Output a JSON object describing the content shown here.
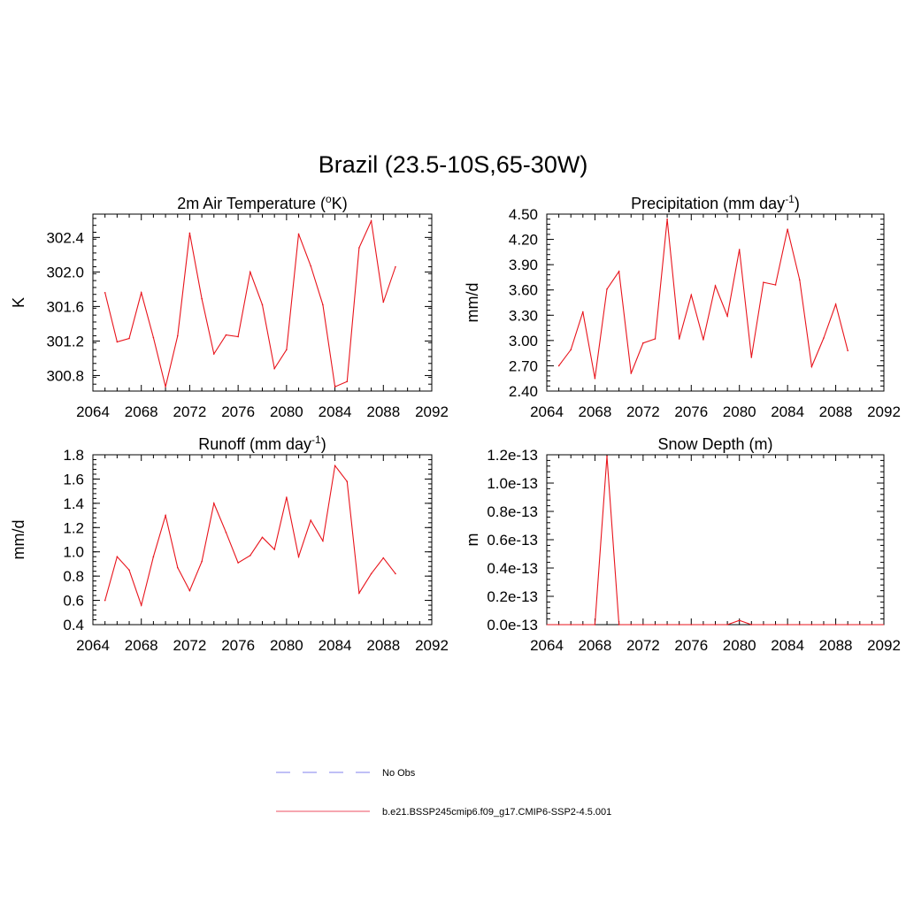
{
  "figure": {
    "title": "Brazil (23.5-10S,65-30W)"
  },
  "legend": {
    "entries": [
      {
        "label": "No Obs",
        "color": "#9a9af0",
        "dash": true
      },
      {
        "label": "b.e21.BSSP245cmip6.f09_g17.CMIP6-SSP2-4.5.001",
        "color": "#f07080",
        "dash": false
      }
    ]
  },
  "colors": {
    "series": "#e8141c",
    "axis": "#000000"
  },
  "chart_data": [
    {
      "type": "line",
      "title_main": "2m Air Temperature (",
      "title_sup_o": "o",
      "title_end": "K)",
      "xlabel": "",
      "ylabel": "K",
      "xlim": [
        2064,
        2092
      ],
      "ylim": [
        300.62,
        302.67
      ],
      "xticks": [
        "2064",
        "2068",
        "2072",
        "2076",
        "2080",
        "2084",
        "2088",
        "2092"
      ],
      "yticks": [
        "300.8",
        "301.2",
        "301.6",
        "302.0",
        "302.4"
      ],
      "yminor_step": 0.08,
      "x": [
        2065,
        2066,
        2067,
        2068,
        2069,
        2070,
        2071,
        2072,
        2073,
        2074,
        2075,
        2076,
        2077,
        2078,
        2079,
        2080,
        2081,
        2082,
        2083,
        2084,
        2085,
        2086,
        2087,
        2088,
        2089
      ],
      "values": [
        301.76,
        301.19,
        301.23,
        301.76,
        301.24,
        300.67,
        301.26,
        302.45,
        301.69,
        301.05,
        301.27,
        301.25,
        302.0,
        301.62,
        300.88,
        301.1,
        302.44,
        302.07,
        301.62,
        300.67,
        300.73,
        302.28,
        302.59,
        301.65,
        302.06
      ]
    },
    {
      "type": "line",
      "title_main": "Precipitation (mm day",
      "title_sup": "-1",
      "title_end": ")",
      "xlabel": "",
      "ylabel": "mm/d",
      "xlim": [
        2064,
        2092
      ],
      "ylim": [
        2.4,
        4.5
      ],
      "xticks": [
        "2064",
        "2068",
        "2072",
        "2076",
        "2080",
        "2084",
        "2088",
        "2092"
      ],
      "yticks": [
        "2.40",
        "2.70",
        "3.00",
        "3.30",
        "3.60",
        "3.90",
        "4.20",
        "4.50"
      ],
      "yminor_step": 0.06,
      "x": [
        2065,
        2066,
        2067,
        2068,
        2069,
        2070,
        2071,
        2072,
        2073,
        2074,
        2075,
        2076,
        2077,
        2078,
        2079,
        2080,
        2081,
        2082,
        2083,
        2084,
        2085,
        2086,
        2087,
        2088,
        2089
      ],
      "values": [
        2.7,
        2.89,
        3.34,
        2.55,
        3.61,
        3.82,
        2.61,
        2.97,
        3.02,
        4.44,
        3.02,
        3.54,
        3.01,
        3.65,
        3.29,
        4.08,
        2.8,
        3.69,
        3.66,
        4.32,
        3.72,
        2.69,
        3.03,
        3.43,
        2.88
      ]
    },
    {
      "type": "line",
      "title_main": "Runoff (mm day",
      "title_sup": "-1",
      "title_end": ")",
      "xlabel": "",
      "ylabel": "mm/d",
      "xlim": [
        2064,
        2092
      ],
      "ylim": [
        0.4,
        1.8
      ],
      "xticks": [
        "2064",
        "2068",
        "2072",
        "2076",
        "2080",
        "2084",
        "2088",
        "2092"
      ],
      "yticks": [
        "0.4",
        "0.6",
        "0.8",
        "1.0",
        "1.2",
        "1.4",
        "1.6",
        "1.8"
      ],
      "yminor_step": 0.04,
      "x": [
        2065,
        2066,
        2067,
        2068,
        2069,
        2070,
        2071,
        2072,
        2073,
        2074,
        2075,
        2076,
        2077,
        2078,
        2079,
        2080,
        2081,
        2082,
        2083,
        2084,
        2085,
        2086,
        2087,
        2088,
        2089
      ],
      "values": [
        0.6,
        0.96,
        0.85,
        0.56,
        0.96,
        1.3,
        0.87,
        0.68,
        0.92,
        1.4,
        1.16,
        0.91,
        0.97,
        1.12,
        1.02,
        1.45,
        0.96,
        1.26,
        1.09,
        1.71,
        1.58,
        0.66,
        0.82,
        0.95,
        0.82
      ]
    },
    {
      "type": "line",
      "title_main": "Snow Depth (m)",
      "xlabel": "",
      "ylabel": "m",
      "xlim": [
        2064,
        2092
      ],
      "ylim": [
        0,
        1.2
      ],
      "xticks": [
        "2064",
        "2068",
        "2072",
        "2076",
        "2080",
        "2084",
        "2088",
        "2092"
      ],
      "yticks": [
        "0.0e-13",
        "0.2e-13",
        "0.4e-13",
        "0.6e-13",
        "0.8e-13",
        "1.0e-13",
        "1.2e-13"
      ],
      "yunit_note": "values in units of 1e-13 m",
      "yminor_step": 0.04,
      "x": [
        2065,
        2066,
        2067,
        2068,
        2069,
        2070,
        2071,
        2072,
        2073,
        2074,
        2075,
        2076,
        2077,
        2078,
        2079,
        2080,
        2081,
        2082,
        2083,
        2084,
        2085,
        2086,
        2087,
        2088,
        2089
      ],
      "values": [
        0,
        0,
        0,
        0,
        1.19,
        0,
        0,
        0,
        0,
        0,
        0,
        0,
        0,
        0,
        0,
        0.03,
        0,
        0,
        0,
        0,
        0,
        0,
        0,
        0,
        0
      ]
    }
  ]
}
